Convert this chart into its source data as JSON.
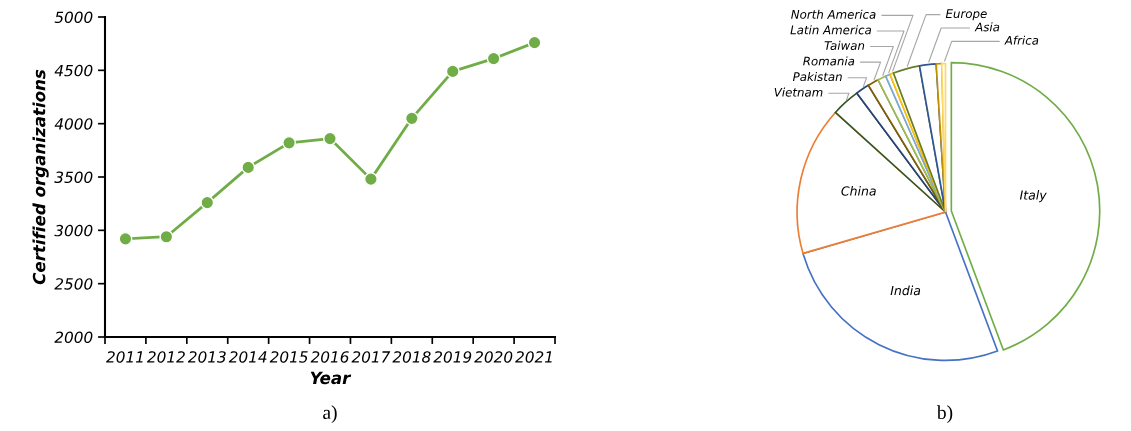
{
  "chart_data": [
    {
      "type": "line",
      "xlabel": "Year",
      "ylabel": "Certified organizations",
      "categories": [
        "2011",
        "2012",
        "2013",
        "2014",
        "2015",
        "2016",
        "2017",
        "2018",
        "2019",
        "2020",
        "2021"
      ],
      "series": [
        {
          "color": "#70ad47",
          "values": [
            2920,
            2940,
            3260,
            3590,
            3820,
            3860,
            3480,
            4050,
            4490,
            4610,
            4760
          ]
        }
      ],
      "ylim": [
        2000,
        5000
      ],
      "yticks": [
        2000,
        2500,
        3000,
        3500,
        4000,
        4500,
        5000
      ],
      "marker": "circle",
      "grid": false,
      "legend": false,
      "annotations": [
        "a)"
      ]
    },
    {
      "type": "pie",
      "categories": [
        "Italy",
        "India",
        "China",
        "Vietnam",
        "Pakistan",
        "Romania",
        "Taiwan",
        "Latin America",
        "North America",
        "Europe",
        "Asia",
        null,
        "Africa"
      ],
      "values": [
        44.3,
        26.2,
        16.2,
        3.1,
        1.5,
        1.2,
        0.9,
        0.5,
        0.4,
        2.9,
        1.8,
        0.6,
        0.4
      ],
      "colors": [
        "#70ad47",
        "#4472c4",
        "#ed7d31",
        "#375623",
        "#264478",
        "#7f6000",
        "#9bbb59",
        "#7ca7d8",
        "#ffc000",
        "#637d2b",
        "#2f5597",
        "#bf9000",
        "#ffd966"
      ],
      "legend": false,
      "annotations": [
        "b)"
      ]
    }
  ]
}
